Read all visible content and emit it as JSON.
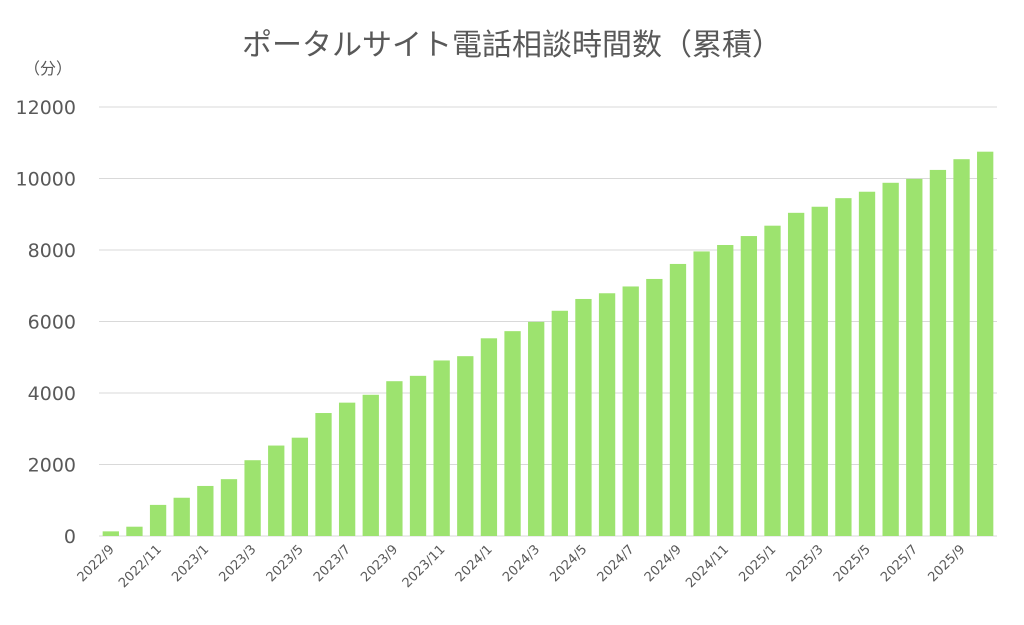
{
  "chart_data": {
    "type": "bar",
    "title": "ポータルサイト電話相談時間数（累積）",
    "y_unit": "（分）",
    "ylim": [
      0,
      12000
    ],
    "yticks": [
      0,
      2000,
      4000,
      6000,
      8000,
      10000,
      12000
    ],
    "grid": true,
    "legend": "none",
    "bar_color": "#9de36f",
    "categories": [
      "2022/9",
      "2022/10",
      "2022/11",
      "2022/12",
      "2023/1",
      "2023/2",
      "2023/3",
      "2023/4",
      "2023/5",
      "2023/6",
      "2023/7",
      "2023/8",
      "2023/9",
      "2023/10",
      "2023/11",
      "2023/12",
      "2024/1",
      "2024/2",
      "2024/3",
      "2024/4",
      "2024/5",
      "2024/6",
      "2024/7",
      "2024/8",
      "2024/9",
      "2024/10",
      "2024/11",
      "2024/12",
      "2025/1",
      "2025/2",
      "2025/3",
      "2025/4",
      "2025/5",
      "2025/6",
      "2025/7",
      "2025/8",
      "2025/9",
      "2025/10"
    ],
    "xtick_labels": [
      "2022/9",
      "2022/11",
      "2023/1",
      "2023/3",
      "2023/5",
      "2023/7",
      "2023/9",
      "2023/11",
      "2024/1",
      "2024/3",
      "2024/5",
      "2024/7",
      "2024/9",
      "2024/11",
      "2025/1",
      "2025/3",
      "2025/5",
      "2025/7",
      "2025/9"
    ],
    "values": [
      130,
      260,
      870,
      1070,
      1400,
      1590,
      2120,
      2530,
      2750,
      3440,
      3730,
      3950,
      4330,
      4480,
      4910,
      5030,
      5530,
      5730,
      5990,
      6300,
      6630,
      6790,
      6980,
      7190,
      7610,
      7960,
      8140,
      8390,
      8680,
      9040,
      9210,
      9450,
      9630,
      9880,
      9990,
      10240,
      10540,
      10750
    ]
  }
}
